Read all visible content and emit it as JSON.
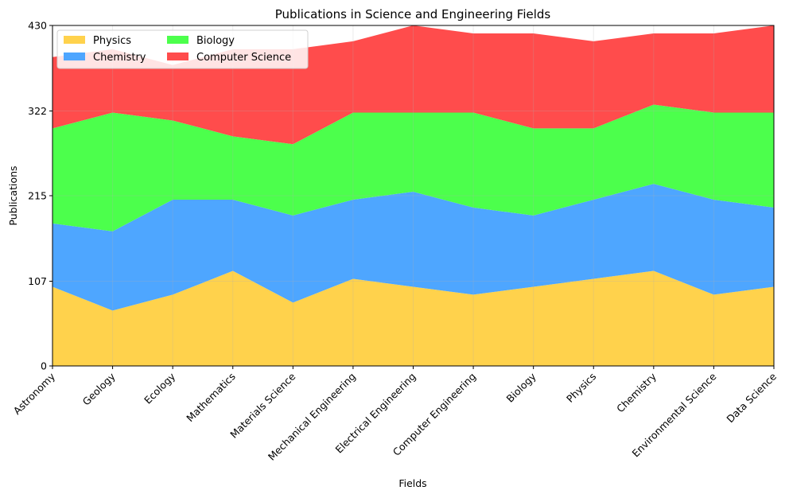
{
  "chart_data": {
    "type": "area",
    "stacked": true,
    "title": "Publications in Science and Engineering Fields",
    "xlabel": "Fields",
    "ylabel": "Publications",
    "categories": [
      "Astronomy",
      "Geology",
      "Ecology",
      "Mathematics",
      "Materials Science",
      "Mechanical Engineering",
      "Electrical Engineering",
      "Computer Engineering",
      "Biology",
      "Physics",
      "Chemistry",
      "Environmental Science",
      "Data Science"
    ],
    "series": [
      {
        "name": "Physics",
        "color": "#FFD24C",
        "values": [
          100,
          70,
          90,
          120,
          80,
          110,
          100,
          90,
          100,
          110,
          120,
          90,
          100
        ]
      },
      {
        "name": "Chemistry",
        "color": "#4EA6FF",
        "values": [
          80,
          100,
          120,
          90,
          110,
          100,
          120,
          110,
          90,
          100,
          110,
          120,
          100
        ]
      },
      {
        "name": "Biology",
        "color": "#4CFF4C",
        "values": [
          120,
          150,
          100,
          80,
          90,
          110,
          100,
          120,
          110,
          90,
          100,
          110,
          120
        ]
      },
      {
        "name": "Computer Science",
        "color": "#FF4C4C",
        "values": [
          90,
          80,
          70,
          110,
          120,
          90,
          110,
          100,
          120,
          110,
          90,
          100,
          110
        ]
      }
    ],
    "ylim": [
      0,
      430
    ],
    "yticks": [
      "0",
      "107",
      "215",
      "322",
      "430"
    ],
    "grid": true,
    "legend_position": "upper-left",
    "legend_columns": 2
  }
}
